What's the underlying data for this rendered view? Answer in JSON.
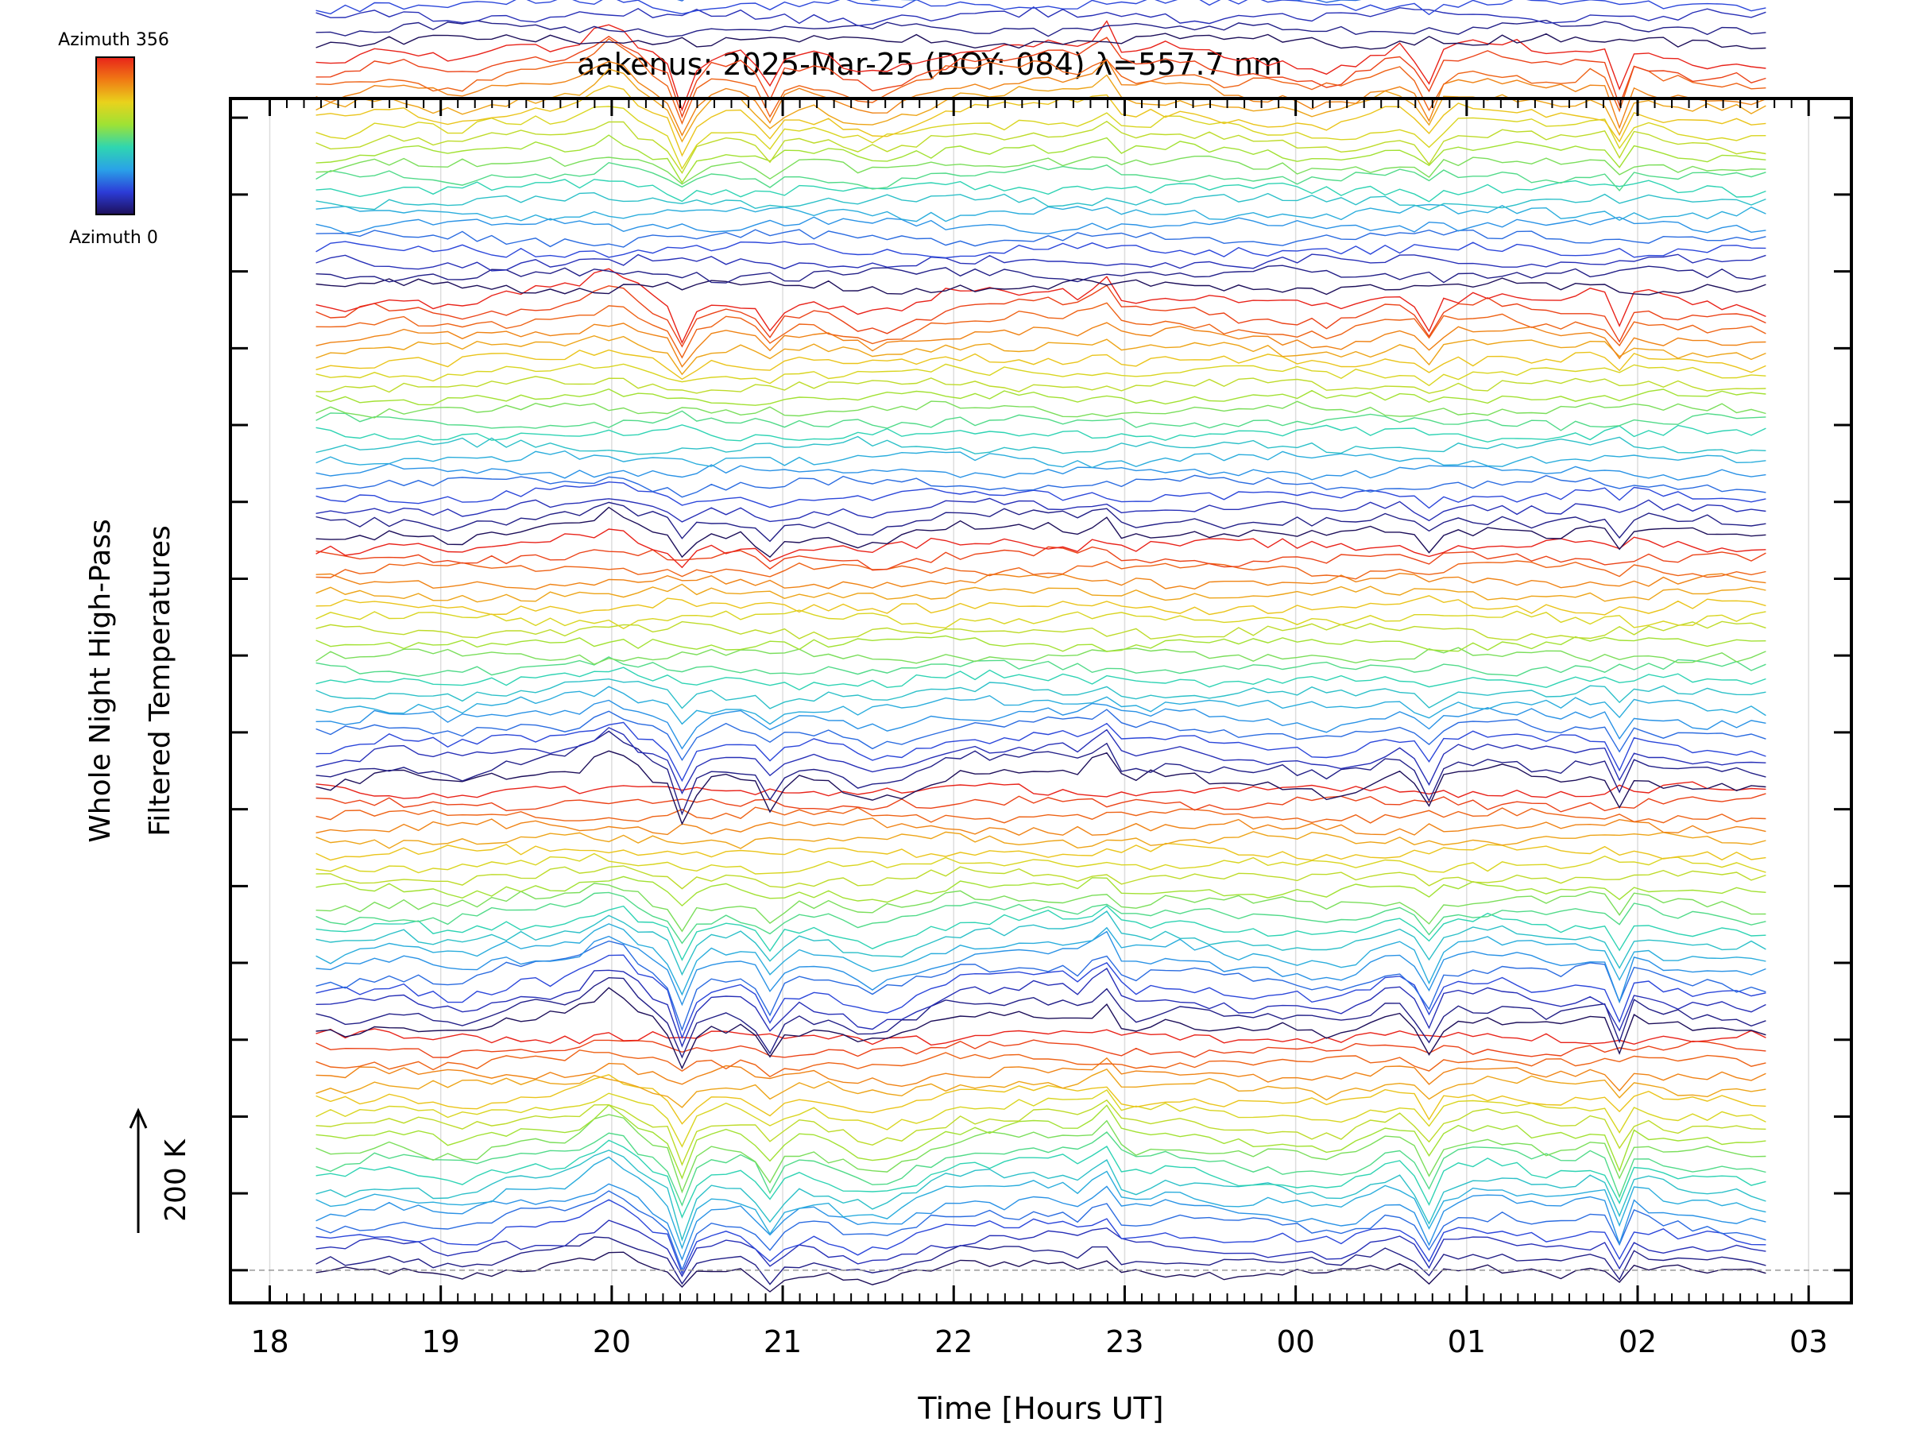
{
  "chart_data": {
    "type": "line",
    "title": "aakenus: 2025-Mar-25 (DOY: 084) λ=557.7 nm",
    "xlabel": "Time [Hours UT]",
    "ylabel_lines": [
      "Whole Night High-Pass",
      "Filtered Temperatures"
    ],
    "scale_label": "200 K",
    "colorbar": {
      "top_label": "Azimuth 356",
      "bottom_label": "Azimuth 0",
      "colors": [
        "#e8231a",
        "#f07a14",
        "#e9d21c",
        "#9ee234",
        "#2fd6b0",
        "#2aa2e8",
        "#2c3cd8",
        "#1d0f5a"
      ]
    },
    "x_ticks": [
      "18",
      "19",
      "20",
      "21",
      "22",
      "23",
      "00",
      "01",
      "02",
      "03"
    ],
    "x_tick_hours": [
      18,
      19,
      20,
      21,
      22,
      23,
      24,
      25,
      26,
      27
    ],
    "xlim_hours": [
      17.77,
      27.25
    ],
    "data_start_hour": 18.27,
    "data_end_hour": 26.75,
    "n_points": 100,
    "n_traces": 120,
    "bands": 6,
    "traces_per_band": 20,
    "trace_offset_K": 32,
    "base_trace_K": 0,
    "ylim_K": [
      -85,
      3050
    ],
    "features": [
      {
        "name": "dip",
        "hour": 20.42,
        "width_h": 0.06,
        "amp_K": -110
      },
      {
        "name": "dip",
        "hour": 20.92,
        "width_h": 0.07,
        "amp_K": -70
      },
      {
        "name": "peak",
        "hour": 22.88,
        "width_h": 0.08,
        "amp_K": 70
      },
      {
        "name": "dip",
        "hour": 24.77,
        "width_h": 0.07,
        "amp_K": -95
      },
      {
        "name": "dip",
        "hour": 25.88,
        "width_h": 0.05,
        "amp_K": -105
      },
      {
        "name": "peak",
        "hour": 20.0,
        "width_h": 0.15,
        "amp_K": 45
      },
      {
        "name": "dip",
        "hour": 21.45,
        "width_h": 0.2,
        "amp_K": -30
      }
    ]
  }
}
